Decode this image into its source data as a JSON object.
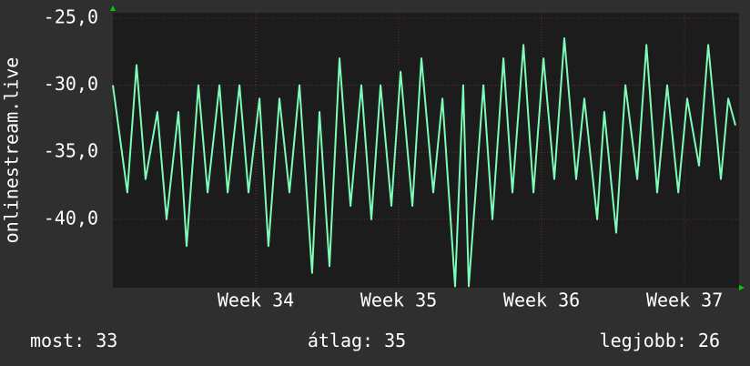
{
  "chart_data": {
    "type": "line",
    "ylabel": "onlinestream.live",
    "x": [
      0,
      0.71,
      1.16,
      1.6,
      2.18,
      2.63,
      3.21,
      3.61,
      4.19,
      4.64,
      5.22,
      5.62,
      6.2,
      6.64,
      7.18,
      7.62,
      8.16,
      8.65,
      9.14,
      9.76,
      10.12,
      10.61,
      11.1,
      11.64,
      12.17,
      12.66,
      13.11,
      13.64,
      14.09,
      14.67,
      15.11,
      15.69,
      16.14,
      16.76,
      17.16,
      17.43,
      18.15,
      18.59,
      19.13,
      19.57,
      20.11,
      20.6,
      21.09,
      21.62,
      22.11,
      22.69,
      23.09,
      23.72,
      24.07,
      24.65,
      25.1,
      25.68,
      26.13,
      26.66,
      27.15,
      27.69,
      28.13,
      28.71,
      29.16,
      29.78,
      30.14,
      30.49
    ],
    "values": [
      -30,
      -38,
      -28.5,
      -37,
      -32,
      -40,
      -32,
      -42,
      -30,
      -38,
      -30,
      -38,
      -30,
      -38,
      -31,
      -42,
      -31,
      -38,
      -30,
      -44,
      -32,
      -43.5,
      -28,
      -39,
      -30,
      -40,
      -30,
      -39,
      -29,
      -39,
      -28,
      -38,
      -31,
      -45,
      -30,
      -45,
      -30,
      -40,
      -28,
      -38,
      -27,
      -38,
      -28,
      -37,
      -26.5,
      -37,
      -31,
      -40,
      -32,
      -41,
      -30,
      -37,
      -27,
      -38,
      -30,
      -38,
      -31,
      -36,
      -27,
      -37,
      -31,
      -33
    ],
    "color": "#7dfcb8",
    "xlim": [
      0,
      30.67
    ],
    "xticks": [
      {
        "value": 7,
        "label": "Week 34"
      },
      {
        "value": 14,
        "label": "Week 35"
      },
      {
        "value": 21,
        "label": "Week 36"
      },
      {
        "value": 28,
        "label": "Week 37"
      }
    ],
    "ylim": [
      -45.1,
      -24.6
    ],
    "yticks": [
      {
        "value": -25,
        "label": "-25,0"
      },
      {
        "value": -30,
        "label": "-30,0"
      },
      {
        "value": -35,
        "label": "-35,0"
      },
      {
        "value": -40,
        "label": "-40,0"
      }
    ],
    "grid": true,
    "stats": [
      {
        "label": "most:",
        "value": 33
      },
      {
        "label": "átlag:",
        "value": 35
      },
      {
        "label": "legjobb:",
        "value": 26
      }
    ]
  }
}
